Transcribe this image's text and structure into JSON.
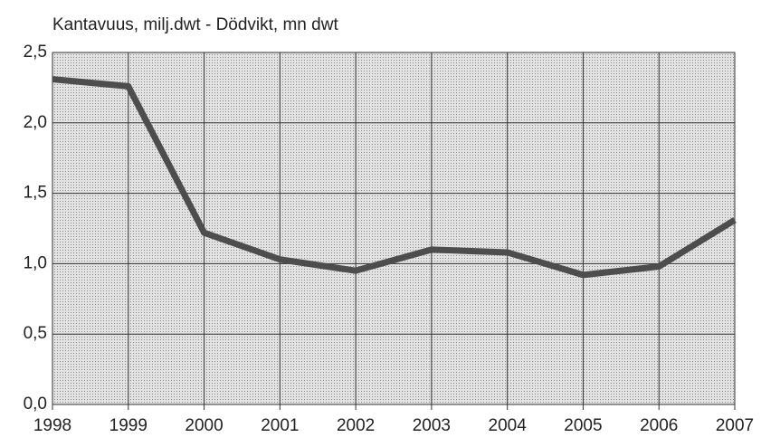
{
  "chart_data": {
    "type": "line",
    "title": "Kantavuus, milj.dwt - Dödvikt, mn dwt",
    "x": [
      1998,
      1999,
      2000,
      2001,
      2002,
      2003,
      2004,
      2005,
      2006,
      2007
    ],
    "values": [
      2.31,
      2.26,
      1.22,
      1.03,
      0.95,
      1.1,
      1.08,
      0.92,
      0.98,
      1.31
    ],
    "color": "#4d4d4d",
    "xlim": [
      1998,
      2007
    ],
    "xticks": [
      1998,
      1999,
      2000,
      2001,
      2002,
      2003,
      2004,
      2005,
      2006,
      2007
    ],
    "ylim": [
      0,
      2.5
    ],
    "yticks": [
      {
        "value": 0,
        "label": "0,0"
      },
      {
        "value": 0.5,
        "label": "0,5"
      },
      {
        "value": 1,
        "label": "1,0"
      },
      {
        "value": 1.5,
        "label": "1,5"
      },
      {
        "value": 2,
        "label": "2,0"
      },
      {
        "value": 2.5,
        "label": "2,5"
      }
    ],
    "grid": true
  }
}
